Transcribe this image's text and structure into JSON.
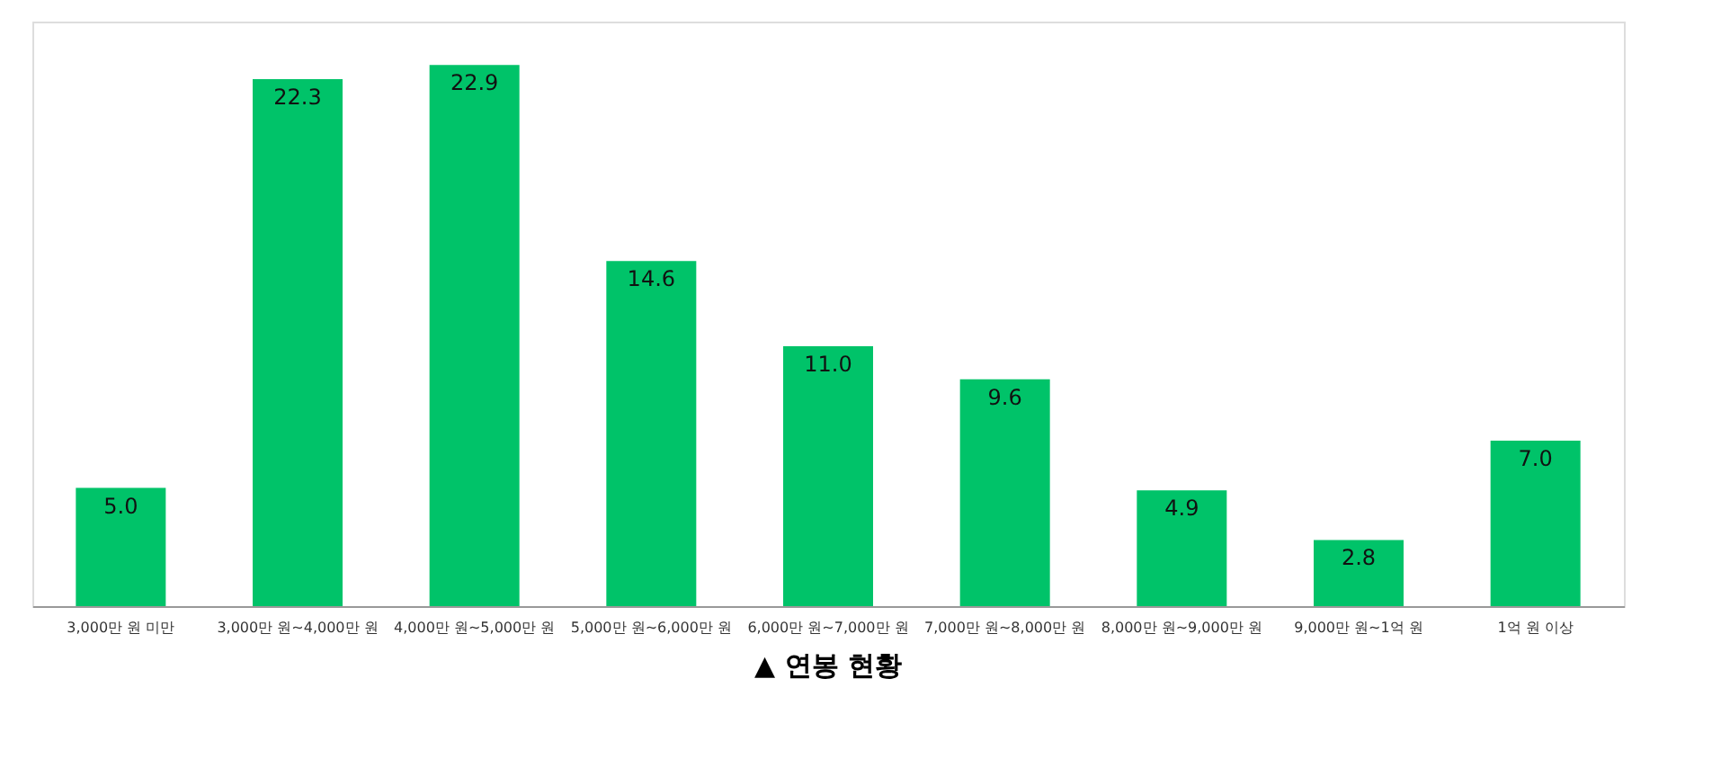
{
  "chart_data": {
    "type": "bar",
    "title": "▲ 연봉 현황",
    "categories": [
      "3,000만 원 미만",
      "3,000만 원~4,000만 원",
      "4,000만 원~5,000만 원",
      "5,000만 원~6,000만 원",
      "6,000만 원~7,000만 원",
      "7,000만 원~8,000만 원",
      "8,000만 원~9,000만 원",
      "9,000만 원~1억 원",
      "1억 원 이상"
    ],
    "values": [
      5.0,
      22.3,
      22.9,
      14.6,
      11.0,
      9.6,
      4.9,
      2.8,
      7.0
    ],
    "value_labels": [
      "5.0",
      "22.3",
      "22.9",
      "14.6",
      "11.0",
      "9.6",
      "4.9",
      "2.8",
      "7.0"
    ],
    "color": "#00c369",
    "grid": false
  }
}
